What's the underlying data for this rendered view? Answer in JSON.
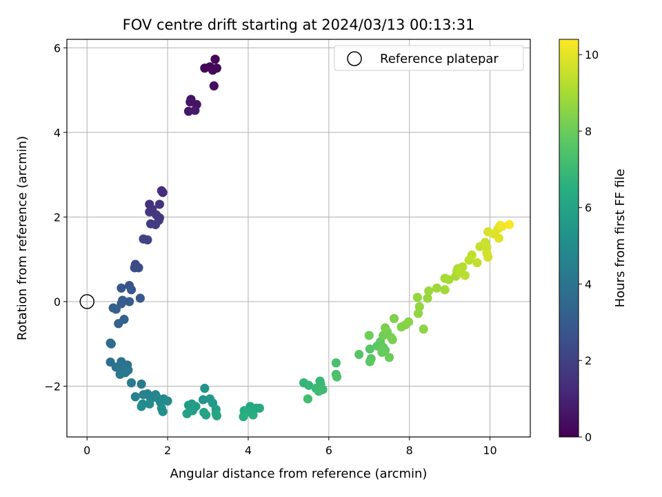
{
  "chart_data": {
    "type": "scatter",
    "title": "FOV centre drift starting at 2024/03/13 00:13:31",
    "xlabel": "Angular distance from reference (arcmin)",
    "ylabel": "Rotation from reference (arcmin)",
    "xlim": [
      -0.5,
      11
    ],
    "ylim": [
      -3.2,
      6.2
    ],
    "xticks": [
      0,
      2,
      4,
      6,
      8,
      10
    ],
    "yticks": [
      -2,
      0,
      2,
      4,
      6
    ],
    "grid": true,
    "legend": {
      "position": "top-right",
      "entries": [
        "Reference platepar"
      ]
    },
    "reference_point": {
      "x": 0,
      "y": 0
    },
    "colorbar": {
      "label": "Hours from first FF file",
      "colormap": "viridis",
      "range": [
        0,
        10.4
      ],
      "ticks": [
        0,
        2,
        4,
        6,
        8,
        10
      ]
    },
    "points": [
      {
        "x": 3.18,
        "y": 5.73,
        "h": 0.05
      },
      {
        "x": 3.05,
        "y": 5.55,
        "h": 0.1
      },
      {
        "x": 2.92,
        "y": 5.52,
        "h": 0.15
      },
      {
        "x": 3.22,
        "y": 5.52,
        "h": 0.2
      },
      {
        "x": 3.12,
        "y": 5.47,
        "h": 0.25
      },
      {
        "x": 3.15,
        "y": 5.1,
        "h": 0.35
      },
      {
        "x": 2.58,
        "y": 4.78,
        "h": 0.5
      },
      {
        "x": 2.56,
        "y": 4.72,
        "h": 0.55
      },
      {
        "x": 2.72,
        "y": 4.66,
        "h": 0.6
      },
      {
        "x": 2.52,
        "y": 4.5,
        "h": 0.65
      },
      {
        "x": 2.68,
        "y": 4.52,
        "h": 0.7
      },
      {
        "x": 1.85,
        "y": 2.62,
        "h": 1.3
      },
      {
        "x": 1.88,
        "y": 2.58,
        "h": 1.35
      },
      {
        "x": 1.55,
        "y": 2.3,
        "h": 1.45
      },
      {
        "x": 1.8,
        "y": 2.3,
        "h": 1.5
      },
      {
        "x": 1.62,
        "y": 2.18,
        "h": 1.55
      },
      {
        "x": 1.55,
        "y": 2.12,
        "h": 1.6
      },
      {
        "x": 1.72,
        "y": 2.05,
        "h": 1.65
      },
      {
        "x": 1.8,
        "y": 1.98,
        "h": 1.7
      },
      {
        "x": 1.78,
        "y": 1.92,
        "h": 1.75
      },
      {
        "x": 1.58,
        "y": 1.84,
        "h": 1.8
      },
      {
        "x": 1.7,
        "y": 1.82,
        "h": 1.85
      },
      {
        "x": 1.4,
        "y": 1.48,
        "h": 2.0
      },
      {
        "x": 1.5,
        "y": 1.46,
        "h": 2.05
      },
      {
        "x": 1.2,
        "y": 0.88,
        "h": 2.3
      },
      {
        "x": 1.28,
        "y": 0.8,
        "h": 2.35
      },
      {
        "x": 1.18,
        "y": 0.8,
        "h": 2.4
      },
      {
        "x": 1.05,
        "y": 0.38,
        "h": 2.7
      },
      {
        "x": 0.85,
        "y": 0.32,
        "h": 2.75
      },
      {
        "x": 1.1,
        "y": 0.28,
        "h": 2.8
      },
      {
        "x": 1.32,
        "y": 0.08,
        "h": 2.9
      },
      {
        "x": 0.88,
        "y": 0.03,
        "h": 2.95
      },
      {
        "x": 1.05,
        "y": 0.0,
        "h": 3.0
      },
      {
        "x": 0.85,
        "y": -0.05,
        "h": 3.05
      },
      {
        "x": 0.65,
        "y": -0.15,
        "h": 3.1
      },
      {
        "x": 0.72,
        "y": -0.18,
        "h": 3.15
      },
      {
        "x": 0.92,
        "y": -0.42,
        "h": 3.25
      },
      {
        "x": 0.78,
        "y": -0.52,
        "h": 3.3
      },
      {
        "x": 0.58,
        "y": -0.98,
        "h": 3.6
      },
      {
        "x": 0.6,
        "y": -1.0,
        "h": 3.65
      },
      {
        "x": 0.58,
        "y": -1.43,
        "h": 3.8
      },
      {
        "x": 0.85,
        "y": -1.42,
        "h": 3.85
      },
      {
        "x": 1.0,
        "y": -1.5,
        "h": 3.9
      },
      {
        "x": 0.72,
        "y": -1.55,
        "h": 3.95
      },
      {
        "x": 0.9,
        "y": -1.58,
        "h": 4.0
      },
      {
        "x": 1.02,
        "y": -1.62,
        "h": 4.05
      },
      {
        "x": 0.82,
        "y": -1.72,
        "h": 4.1
      },
      {
        "x": 0.95,
        "y": -1.68,
        "h": 4.15
      },
      {
        "x": 1.1,
        "y": -1.92,
        "h": 4.3
      },
      {
        "x": 1.35,
        "y": -1.95,
        "h": 4.35
      },
      {
        "x": 1.2,
        "y": -2.25,
        "h": 4.5
      },
      {
        "x": 1.4,
        "y": -2.2,
        "h": 4.55
      },
      {
        "x": 1.5,
        "y": -2.18,
        "h": 4.6
      },
      {
        "x": 1.7,
        "y": -2.2,
        "h": 4.65
      },
      {
        "x": 1.58,
        "y": -2.3,
        "h": 4.7
      },
      {
        "x": 1.75,
        "y": -2.28,
        "h": 4.75
      },
      {
        "x": 1.9,
        "y": -2.3,
        "h": 4.8
      },
      {
        "x": 1.82,
        "y": -2.38,
        "h": 4.85
      },
      {
        "x": 2.0,
        "y": -2.35,
        "h": 4.9
      },
      {
        "x": 1.38,
        "y": -2.42,
        "h": 4.95
      },
      {
        "x": 1.55,
        "y": -2.42,
        "h": 5.0
      },
      {
        "x": 1.35,
        "y": -2.48,
        "h": 5.05
      },
      {
        "x": 1.85,
        "y": -2.52,
        "h": 5.1
      },
      {
        "x": 1.88,
        "y": -2.6,
        "h": 5.15
      },
      {
        "x": 2.92,
        "y": -2.05,
        "h": 5.35
      },
      {
        "x": 2.88,
        "y": -2.32,
        "h": 5.45
      },
      {
        "x": 3.05,
        "y": -2.3,
        "h": 5.5
      },
      {
        "x": 3.12,
        "y": -2.4,
        "h": 5.55
      },
      {
        "x": 2.6,
        "y": -2.42,
        "h": 5.6
      },
      {
        "x": 2.52,
        "y": -2.45,
        "h": 5.65
      },
      {
        "x": 2.7,
        "y": -2.48,
        "h": 5.7
      },
      {
        "x": 3.2,
        "y": -2.55,
        "h": 5.75
      },
      {
        "x": 2.62,
        "y": -2.58,
        "h": 5.8
      },
      {
        "x": 2.48,
        "y": -2.65,
        "h": 5.85
      },
      {
        "x": 2.9,
        "y": -2.62,
        "h": 5.9
      },
      {
        "x": 2.95,
        "y": -2.68,
        "h": 5.95
      },
      {
        "x": 3.2,
        "y": -2.65,
        "h": 6.0
      },
      {
        "x": 3.22,
        "y": -2.7,
        "h": 6.05
      },
      {
        "x": 4.05,
        "y": -2.48,
        "h": 6.2
      },
      {
        "x": 4.2,
        "y": -2.52,
        "h": 6.25
      },
      {
        "x": 4.28,
        "y": -2.52,
        "h": 6.3
      },
      {
        "x": 3.9,
        "y": -2.58,
        "h": 6.35
      },
      {
        "x": 4.0,
        "y": -2.6,
        "h": 6.4
      },
      {
        "x": 4.12,
        "y": -2.68,
        "h": 6.45
      },
      {
        "x": 3.88,
        "y": -2.72,
        "h": 6.5
      },
      {
        "x": 5.38,
        "y": -1.92,
        "h": 6.8
      },
      {
        "x": 5.5,
        "y": -1.98,
        "h": 6.85
      },
      {
        "x": 5.78,
        "y": -1.88,
        "h": 6.9
      },
      {
        "x": 5.8,
        "y": -1.95,
        "h": 6.95
      },
      {
        "x": 5.68,
        "y": -2.05,
        "h": 7.0
      },
      {
        "x": 5.85,
        "y": -2.08,
        "h": 7.05
      },
      {
        "x": 5.75,
        "y": -2.12,
        "h": 7.1
      },
      {
        "x": 5.48,
        "y": -2.3,
        "h": 7.15
      },
      {
        "x": 6.18,
        "y": -1.45,
        "h": 7.3
      },
      {
        "x": 6.18,
        "y": -1.72,
        "h": 7.35
      },
      {
        "x": 6.2,
        "y": -1.78,
        "h": 7.4
      },
      {
        "x": 6.75,
        "y": -1.25,
        "h": 7.55
      },
      {
        "x": 7.02,
        "y": -1.12,
        "h": 7.6
      },
      {
        "x": 7.05,
        "y": -1.35,
        "h": 7.65
      },
      {
        "x": 7.02,
        "y": -1.42,
        "h": 7.7
      },
      {
        "x": 7.2,
        "y": -1.05,
        "h": 7.75
      },
      {
        "x": 7.28,
        "y": -0.95,
        "h": 7.8
      },
      {
        "x": 7.35,
        "y": -1.08,
        "h": 7.85
      },
      {
        "x": 7.4,
        "y": -1.15,
        "h": 7.9
      },
      {
        "x": 7.32,
        "y": -1.2,
        "h": 7.95
      },
      {
        "x": 7.5,
        "y": -1.32,
        "h": 8.0
      },
      {
        "x": 7.0,
        "y": -0.8,
        "h": 8.05
      },
      {
        "x": 7.35,
        "y": -0.8,
        "h": 8.1
      },
      {
        "x": 7.45,
        "y": -0.72,
        "h": 8.15
      },
      {
        "x": 7.55,
        "y": -0.85,
        "h": 8.2
      },
      {
        "x": 7.58,
        "y": -0.9,
        "h": 8.25
      },
      {
        "x": 7.4,
        "y": -0.62,
        "h": 8.3
      },
      {
        "x": 7.62,
        "y": -0.4,
        "h": 8.35
      },
      {
        "x": 7.8,
        "y": -0.6,
        "h": 8.4
      },
      {
        "x": 7.9,
        "y": -0.55,
        "h": 8.45
      },
      {
        "x": 7.98,
        "y": -0.48,
        "h": 8.5
      },
      {
        "x": 8.35,
        "y": -0.65,
        "h": 8.55
      },
      {
        "x": 8.22,
        "y": -0.28,
        "h": 8.6
      },
      {
        "x": 8.25,
        "y": -0.12,
        "h": 8.65
      },
      {
        "x": 8.2,
        "y": 0.1,
        "h": 8.7
      },
      {
        "x": 8.45,
        "y": 0.08,
        "h": 8.75
      },
      {
        "x": 8.48,
        "y": 0.25,
        "h": 8.8
      },
      {
        "x": 8.68,
        "y": 0.32,
        "h": 8.85
      },
      {
        "x": 8.88,
        "y": 0.28,
        "h": 8.9
      },
      {
        "x": 8.88,
        "y": 0.55,
        "h": 8.95
      },
      {
        "x": 8.98,
        "y": 0.52,
        "h": 9.0
      },
      {
        "x": 9.15,
        "y": 0.6,
        "h": 9.05
      },
      {
        "x": 9.18,
        "y": 0.72,
        "h": 9.1
      },
      {
        "x": 9.2,
        "y": 0.78,
        "h": 9.15
      },
      {
        "x": 9.32,
        "y": 0.82,
        "h": 9.2
      },
      {
        "x": 9.25,
        "y": 0.68,
        "h": 9.25
      },
      {
        "x": 9.38,
        "y": 0.62,
        "h": 9.3
      },
      {
        "x": 9.48,
        "y": 0.98,
        "h": 9.35
      },
      {
        "x": 9.55,
        "y": 1.1,
        "h": 9.4
      },
      {
        "x": 9.68,
        "y": 0.92,
        "h": 9.45
      },
      {
        "x": 9.75,
        "y": 1.3,
        "h": 9.5
      },
      {
        "x": 9.88,
        "y": 1.4,
        "h": 9.55
      },
      {
        "x": 9.92,
        "y": 1.28,
        "h": 9.6
      },
      {
        "x": 9.92,
        "y": 1.15,
        "h": 9.65
      },
      {
        "x": 9.95,
        "y": 1.05,
        "h": 9.7
      },
      {
        "x": 9.95,
        "y": 1.65,
        "h": 9.8
      },
      {
        "x": 10.1,
        "y": 1.6,
        "h": 9.85
      },
      {
        "x": 10.2,
        "y": 1.72,
        "h": 9.9
      },
      {
        "x": 10.22,
        "y": 1.5,
        "h": 9.95
      },
      {
        "x": 10.25,
        "y": 1.8,
        "h": 10.1
      },
      {
        "x": 10.3,
        "y": 1.78,
        "h": 10.2
      },
      {
        "x": 10.48,
        "y": 1.82,
        "h": 10.35
      }
    ]
  }
}
